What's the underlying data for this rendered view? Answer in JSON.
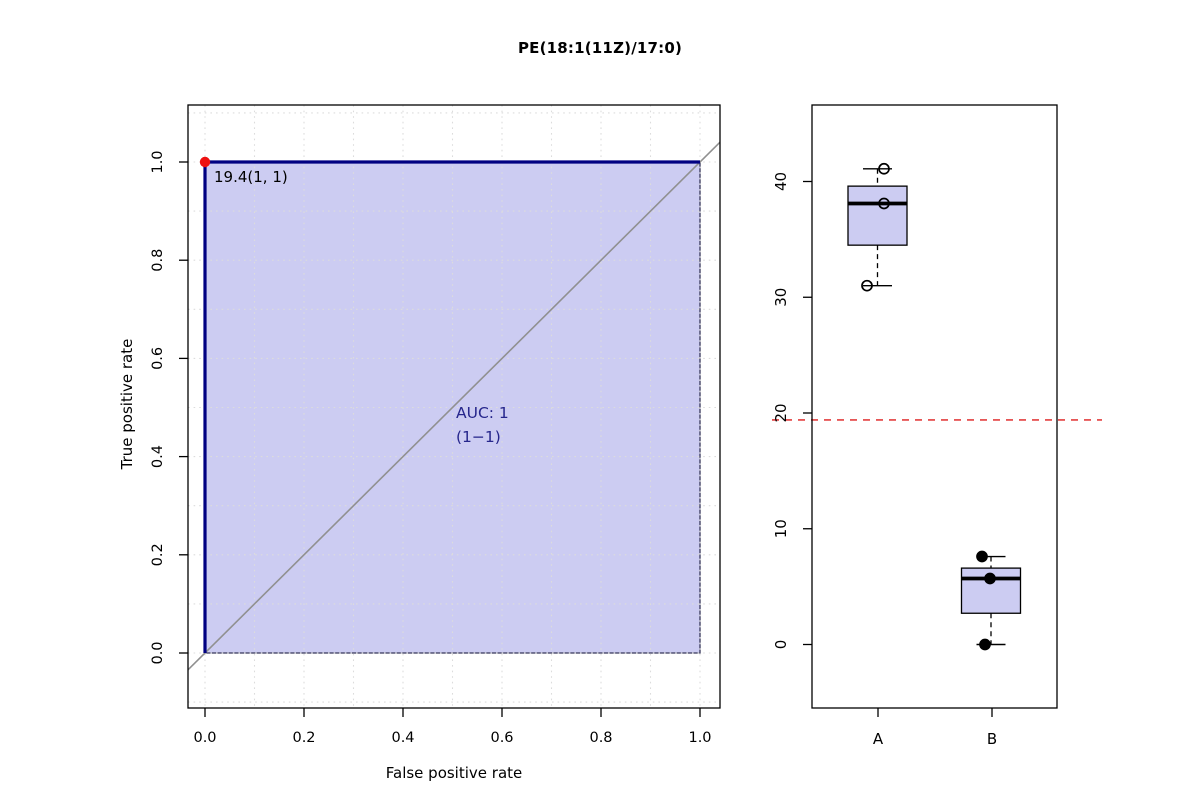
{
  "title": "PE(18:1(11Z)/17:0)",
  "colors": {
    "roc_line": "#000082",
    "auc_fill": "#ccccf2",
    "fill_border": "#36365a",
    "diagonal": "#909090",
    "grid": "#dcdcdc",
    "threshold_point": "#ee1111",
    "threshold_line": "#e33e3e",
    "axis": "#000000",
    "auc_text": "#26268c"
  },
  "chart_data": [
    {
      "type": "line",
      "name": "roc-curve-panel",
      "xlabel": "False positive rate",
      "ylabel": "True positive rate",
      "xlim": [
        0,
        1
      ],
      "ylim": [
        0,
        1
      ],
      "xticks": {
        "values": [
          0,
          0.2,
          0.4,
          0.6,
          0.8,
          1.0
        ],
        "labels": [
          "0.0",
          "0.2",
          "0.4",
          "0.6",
          "0.8",
          "1.0"
        ]
      },
      "yticks": {
        "values": [
          0,
          0.2,
          0.4,
          0.6,
          0.8,
          1.0
        ],
        "labels": [
          "0.0",
          "0.2",
          "0.4",
          "0.6",
          "0.8",
          "1.0"
        ]
      },
      "grid": {
        "on": true,
        "step": 0.1,
        "style": "dotted"
      },
      "diagonal_reference": true,
      "series": [
        {
          "name": "ROC curve",
          "x": [
            0,
            0,
            1
          ],
          "y": [
            0,
            1,
            1
          ]
        }
      ],
      "auc_polygon": {
        "x": [
          0,
          0,
          1,
          1
        ],
        "y": [
          0,
          1,
          1,
          0
        ]
      },
      "best_threshold": {
        "label": "19.4(1, 1)",
        "x": 0,
        "y": 1
      },
      "annotations": [
        "AUC: 1",
        "(1−1)"
      ]
    },
    {
      "type": "boxplot",
      "name": "group-boxplot-panel",
      "categories": [
        "A",
        "B"
      ],
      "ylim": [
        -2.5,
        46
      ],
      "yticks": {
        "values": [
          0,
          10,
          20,
          30,
          40
        ],
        "labels": [
          "0",
          "10",
          "20",
          "30",
          "40"
        ]
      },
      "threshold_value": 19.4,
      "boxes": [
        {
          "group": "A",
          "whisker_low": 31.0,
          "q1": 34.5,
          "median": 38.1,
          "q3": 39.6,
          "whisker_high": 41.1,
          "point_style": "open",
          "points": [
            {
              "value": 41.1,
              "dx": 6.5
            },
            {
              "value": 38.1,
              "dx": 6.5
            },
            {
              "value": 31.0,
              "dx": -10.5
            }
          ]
        },
        {
          "group": "B",
          "whisker_low": 0,
          "q1": 2.7,
          "median": 5.7,
          "q3": 6.6,
          "whisker_high": 7.6,
          "point_style": "filled",
          "points": [
            {
              "value": 7.6,
              "dx": -9
            },
            {
              "value": 5.7,
              "dx": -1
            },
            {
              "value": 0,
              "dx": -6
            }
          ]
        }
      ]
    }
  ]
}
